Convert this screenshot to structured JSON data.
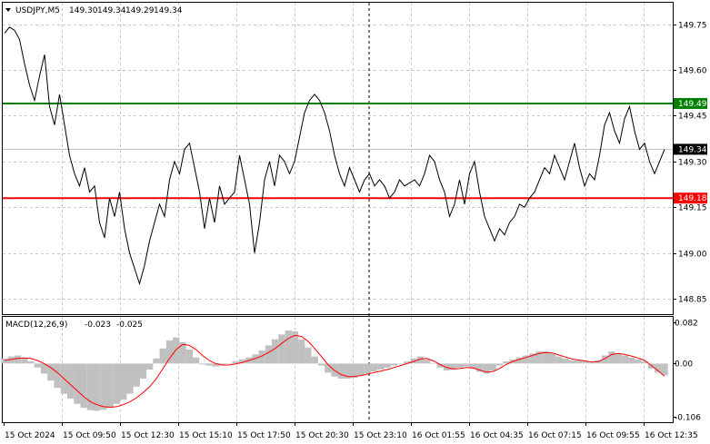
{
  "chart_data": [
    {
      "type": "line",
      "title": "USDJPY,M5",
      "ohlc": [
        "149.30",
        "149.34",
        "149.29",
        "149.34"
      ],
      "ylim": [
        148.8,
        149.82
      ],
      "ytick_labels": [
        "149.75",
        "149.60",
        "149.45",
        "149.30",
        "149.15",
        "149.00",
        "148.85"
      ],
      "ytick_values": [
        149.75,
        149.6,
        149.45,
        149.3,
        149.15,
        149.0,
        148.85
      ],
      "xtick_labels": [
        "15 Oct 2024",
        "15 Oct 09:50",
        "15 Oct 12:30",
        "15 Oct 15:10",
        "15 Oct 17:50",
        "15 Oct 20:30",
        "15 Oct 23:10",
        "16 Oct 01:55",
        "16 Oct 04:35",
        "16 Oct 07:15",
        "16 Oct 09:55",
        "16 Oct 12:35"
      ],
      "grid": true,
      "series": [
        {
          "values": [
            149.72,
            149.74,
            149.73,
            149.7,
            149.62,
            149.55,
            149.5,
            149.58,
            149.65,
            149.48,
            149.42,
            149.52,
            149.42,
            149.32,
            149.26,
            149.22,
            149.28,
            149.2,
            149.22,
            149.1,
            149.05,
            149.18,
            149.12,
            149.2,
            149.08,
            149.0,
            148.95,
            148.9,
            148.96,
            149.04,
            149.1,
            149.16,
            149.12,
            149.24,
            149.3,
            149.26,
            149.34,
            149.36,
            149.28,
            149.2,
            149.08,
            149.18,
            149.1,
            149.22,
            149.16,
            149.18,
            149.2,
            149.32,
            149.24,
            149.16,
            149.0,
            149.1,
            149.24,
            149.3,
            149.22,
            149.32,
            149.3,
            149.26,
            149.3,
            149.38,
            149.46,
            149.5,
            149.52,
            149.5,
            149.46,
            149.4,
            149.32,
            149.26,
            149.22,
            149.28,
            149.24,
            149.2,
            149.24,
            149.26,
            149.22,
            149.24,
            149.22,
            149.18,
            149.2,
            149.24,
            149.22,
            149.23,
            149.24,
            149.22,
            149.26,
            149.32,
            149.3,
            149.24,
            149.2,
            149.12,
            149.16,
            149.24,
            149.16,
            149.26,
            149.3,
            149.2,
            149.12,
            149.08,
            149.04,
            149.08,
            149.06,
            149.1,
            149.12,
            149.16,
            149.15,
            149.18,
            149.2,
            149.24,
            149.28,
            149.26,
            149.32,
            149.28,
            149.24,
            149.3,
            149.36,
            149.28,
            149.22,
            149.26,
            149.24,
            149.32,
            149.42,
            149.46,
            149.4,
            149.36,
            149.44,
            149.48,
            149.4,
            149.34,
            149.36,
            149.3,
            149.26,
            149.3,
            149.34
          ],
          "color": "#000000"
        }
      ],
      "levels": [
        {
          "label": "149.49",
          "value": 149.49,
          "color": "#008000"
        },
        {
          "label": "149.18",
          "value": 149.18,
          "color": "#ff0000"
        }
      ],
      "current_price": {
        "label": "149.34",
        "value": 149.34
      }
    },
    {
      "type": "bar",
      "title": "MACD(12,26,9)",
      "values_text": [
        "-0.023",
        "-0.025"
      ],
      "ylim": [
        -0.106,
        0.082
      ],
      "ytick_labels": [
        "0.082",
        "0.00",
        "-0.106"
      ],
      "ytick_values": [
        0.082,
        0.0,
        -0.106
      ],
      "series": [
        {
          "values": [
            0.01,
            0.014,
            0.016,
            0.012,
            0.004,
            -0.008,
            -0.02,
            -0.034,
            -0.048,
            -0.06,
            -0.07,
            -0.08,
            -0.088,
            -0.093,
            -0.094,
            -0.092,
            -0.088,
            -0.08,
            -0.072,
            -0.06,
            -0.046,
            -0.03,
            -0.012,
            0.01,
            0.03,
            0.046,
            0.052,
            0.042,
            0.028,
            0.012,
            -0.002,
            -0.004,
            -0.006,
            -0.004,
            0.0,
            0.004,
            0.008,
            0.012,
            0.018,
            0.026,
            0.036,
            0.048,
            0.058,
            0.066,
            0.064,
            0.048,
            0.032,
            0.014,
            -0.004,
            -0.018,
            -0.026,
            -0.03,
            -0.03,
            -0.028,
            -0.024,
            -0.02,
            -0.016,
            -0.012,
            -0.008,
            -0.004,
            0.0,
            0.004,
            0.01,
            0.014,
            0.008,
            0.0,
            -0.008,
            -0.014,
            -0.012,
            -0.008,
            -0.006,
            -0.01,
            -0.016,
            -0.02,
            -0.014,
            -0.004,
            0.004,
            0.008,
            0.012,
            0.016,
            0.02,
            0.024,
            0.024,
            0.02,
            0.014,
            0.01,
            0.006,
            0.006,
            0.004,
            0.002,
            0.006,
            0.016,
            0.024,
            0.02,
            0.016,
            0.012,
            0.008,
            0.004,
            -0.01,
            -0.018,
            -0.023
          ],
          "color": "#c0c0c0",
          "kind": "histogram"
        },
        {
          "values": [
            0.006,
            0.008,
            0.01,
            0.011,
            0.01,
            0.006,
            0.0,
            -0.008,
            -0.018,
            -0.03,
            -0.042,
            -0.054,
            -0.066,
            -0.076,
            -0.082,
            -0.086,
            -0.087,
            -0.086,
            -0.082,
            -0.076,
            -0.068,
            -0.058,
            -0.046,
            -0.03,
            -0.01,
            0.01,
            0.028,
            0.038,
            0.036,
            0.028,
            0.016,
            0.006,
            0.0,
            -0.003,
            -0.003,
            -0.001,
            0.002,
            0.006,
            0.01,
            0.015,
            0.022,
            0.03,
            0.04,
            0.05,
            0.056,
            0.054,
            0.044,
            0.03,
            0.014,
            -0.002,
            -0.014,
            -0.022,
            -0.026,
            -0.026,
            -0.024,
            -0.021,
            -0.018,
            -0.015,
            -0.012,
            -0.008,
            -0.004,
            0.0,
            0.004,
            0.009,
            0.01,
            0.005,
            -0.002,
            -0.008,
            -0.011,
            -0.01,
            -0.008,
            -0.009,
            -0.013,
            -0.017,
            -0.016,
            -0.01,
            -0.002,
            0.004,
            0.008,
            0.012,
            0.016,
            0.02,
            0.022,
            0.021,
            0.017,
            0.013,
            0.009,
            0.007,
            0.005,
            0.003,
            0.004,
            0.01,
            0.018,
            0.02,
            0.018,
            0.015,
            0.011,
            0.006,
            -0.004,
            -0.014,
            -0.025
          ],
          "color": "#ff0000",
          "kind": "signal"
        }
      ]
    }
  ]
}
